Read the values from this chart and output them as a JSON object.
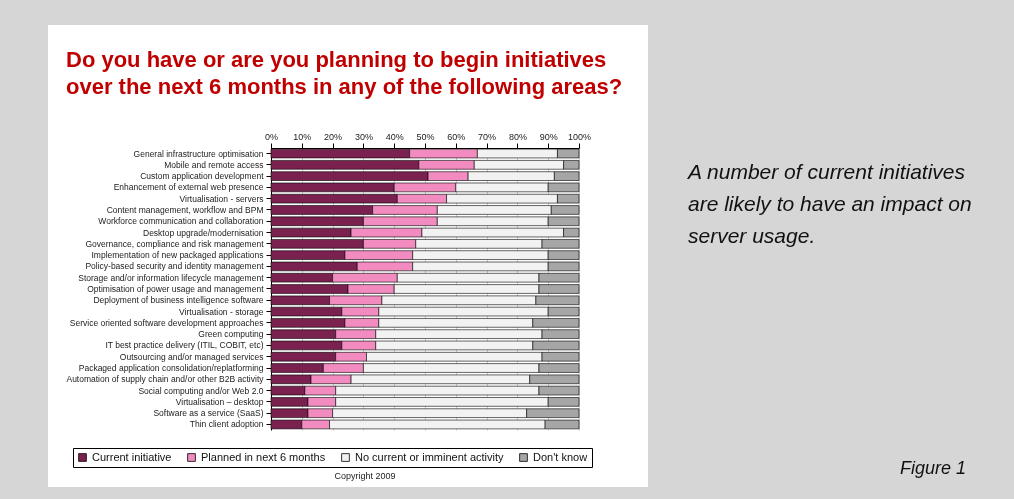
{
  "chart_data": {
    "type": "bar",
    "orientation": "horizontal",
    "stacked": true,
    "title": "Do you have or are you planning to begin initiatives over the next 6 months in any of the following areas?",
    "categories": [
      "General infrastructure optimisation",
      "Mobile and remote access",
      "Custom application development",
      "Enhancement of external web presence",
      "Virtualisation - servers",
      "Content management, workflow and BPM",
      "Workforce communication and collaboration",
      "Desktop upgrade/modernisation",
      "Governance, compliance and risk management",
      "Implementation of new packaged applications",
      "Policy-based security and identity management",
      "Storage and/or information lifecycle management",
      "Optimisation of power usage and management",
      "Deployment of business intelligence software",
      "Virtualisation - storage",
      "Service oriented software development approaches",
      "Green computing",
      "IT best practice delivery (ITIL, COBIT, etc)",
      "Outsourcing and/or managed services",
      "Packaged application consolidation/replatforming",
      "Automation of supply chain and/or other B2B activity",
      "Social computing and/or Web 2.0",
      "Virtualisation – desktop",
      "Software as a service (SaaS)",
      "Thin client adoption"
    ],
    "series": [
      {
        "name": "Current initiative",
        "color": "#7b2150",
        "values": [
          45,
          48,
          51,
          40,
          41,
          33,
          30,
          26,
          30,
          24,
          28,
          20,
          25,
          19,
          23,
          24,
          21,
          23,
          21,
          17,
          13,
          11,
          12,
          12,
          10
        ]
      },
      {
        "name": "Planned in next 6 months",
        "color": "#f28cc0",
        "values": [
          22,
          18,
          13,
          20,
          16,
          21,
          24,
          23,
          17,
          22,
          18,
          21,
          15,
          17,
          12,
          11,
          13,
          11,
          10,
          13,
          13,
          10,
          9,
          8,
          9
        ]
      },
      {
        "name": "No current or imminent activity",
        "color": "#f2f2f2",
        "values": [
          26,
          29,
          28,
          30,
          36,
          37,
          36,
          46,
          41,
          44,
          44,
          46,
          47,
          50,
          55,
          50,
          54,
          51,
          57,
          57,
          58,
          66,
          69,
          63,
          70
        ]
      },
      {
        "name": "Don't know",
        "color": "#a6a6a6",
        "values": [
          7,
          5,
          8,
          10,
          7,
          9,
          10,
          5,
          12,
          10,
          10,
          13,
          13,
          14,
          10,
          15,
          12,
          15,
          12,
          13,
          16,
          13,
          10,
          17,
          11
        ]
      }
    ],
    "xlim": [
      0,
      100
    ],
    "xticks": [
      {
        "value": 0,
        "label": "0%"
      },
      {
        "value": 10,
        "label": "10%"
      },
      {
        "value": 20,
        "label": "20%"
      },
      {
        "value": 30,
        "label": "30%"
      },
      {
        "value": 40,
        "label": "40%"
      },
      {
        "value": 50,
        "label": "50%"
      },
      {
        "value": 60,
        "label": "60%"
      },
      {
        "value": 70,
        "label": "70%"
      },
      {
        "value": 80,
        "label": "80%"
      },
      {
        "value": 90,
        "label": "90%"
      },
      {
        "value": 100,
        "label": "100%"
      }
    ],
    "grid": "x",
    "legend": "bottom",
    "annotations": [
      "A number of current initiatives are likely to have an impact on server usage.",
      "Figure 1",
      "Copyright 2009"
    ]
  }
}
